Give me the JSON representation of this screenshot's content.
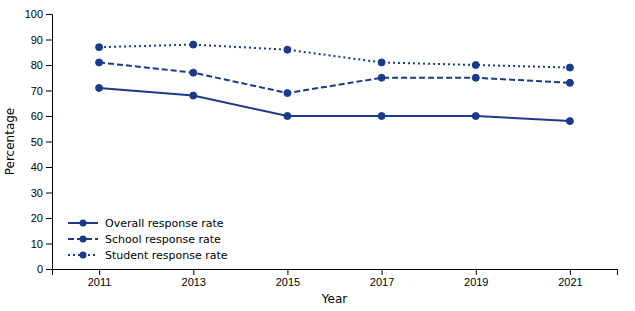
{
  "chart_data": {
    "type": "line",
    "xlabel": "Year",
    "ylabel": "Percentage",
    "x": [
      2011,
      2013,
      2015,
      2017,
      2019,
      2021
    ],
    "series": [
      {
        "name": "Overall response rate",
        "color": "#1a3a8a",
        "values": [
          71,
          68,
          60,
          60,
          60,
          58
        ],
        "line_style": "solid",
        "marker": "circle"
      },
      {
        "name": "School response rate",
        "color": "#1a3a8a",
        "values": [
          81,
          77,
          69,
          75,
          75,
          73
        ],
        "line_style": "dashed",
        "marker": "circle"
      },
      {
        "name": "Student response rate",
        "color": "#1a3a8a",
        "values": [
          87,
          88,
          86,
          81,
          80,
          79
        ],
        "line_style": "dotted",
        "marker": "circle"
      }
    ],
    "xlim": [
      2010,
      2022
    ],
    "xticks": [
      2011,
      2013,
      2015,
      2017,
      2019,
      2021
    ],
    "ylim": [
      0,
      100
    ],
    "yticks": [
      0,
      10,
      20,
      30,
      40,
      50,
      60,
      70,
      80,
      90,
      100
    ],
    "grid": false,
    "legend": "lower left"
  }
}
